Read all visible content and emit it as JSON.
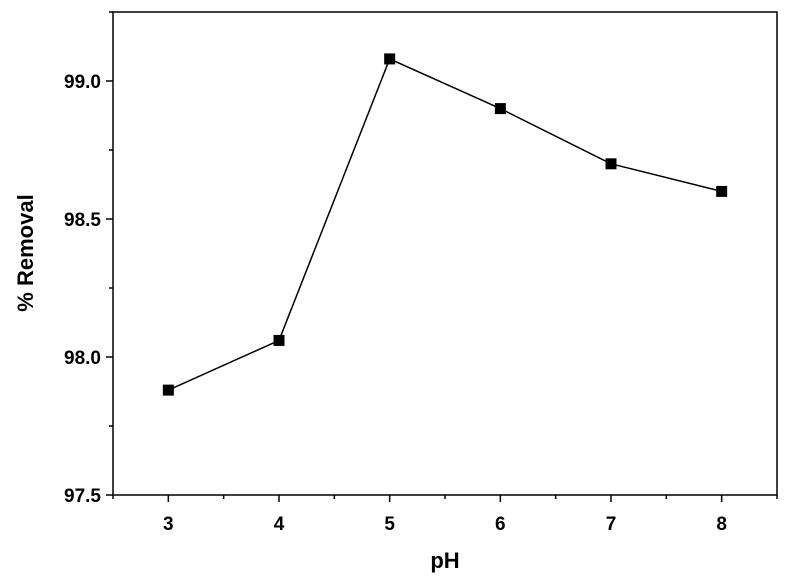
{
  "chart_data": {
    "type": "line",
    "title": "",
    "xlabel": "pH",
    "ylabel": "% Removal",
    "x": [
      3,
      4,
      5,
      6,
      7,
      8
    ],
    "series": [
      {
        "values": [
          97.88,
          98.06,
          99.08,
          98.9,
          98.7,
          98.6
        ]
      }
    ],
    "xlim": [
      2.5,
      8.5
    ],
    "ylim": [
      97.5,
      99.25
    ],
    "xticks": [
      "3",
      "4",
      "5",
      "6",
      "7",
      "8"
    ],
    "yticks": [
      "97.5",
      "98.0",
      "98.5",
      "99.0"
    ],
    "ytick_values": [
      97.5,
      98.0,
      98.5,
      99.0
    ],
    "marker": "square",
    "line_color": "#000000",
    "grid": false,
    "legend": "none"
  }
}
